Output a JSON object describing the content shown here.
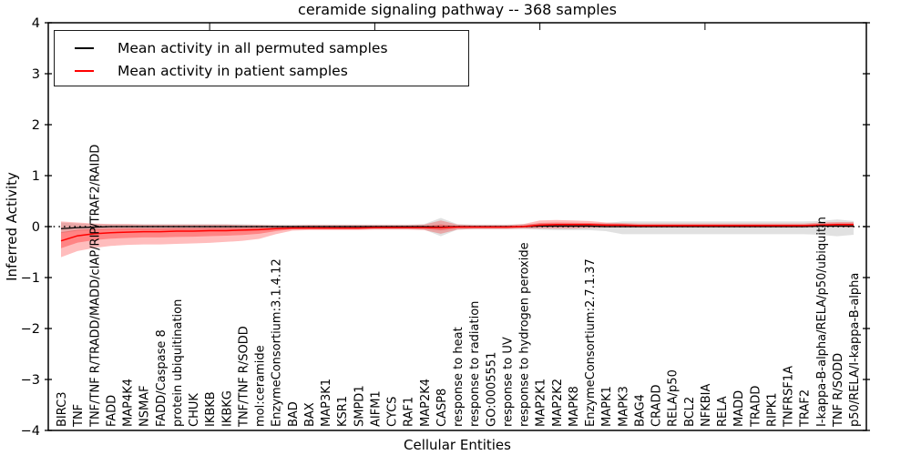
{
  "figure": {
    "background": "#ffffff",
    "frame_color": "#000000"
  },
  "chart_data": {
    "type": "line",
    "title": "ceramide signaling pathway -- 368 samples",
    "xlabel": "Cellular Entities",
    "ylabel": "Inferred Activity",
    "ylim": [
      -4,
      4
    ],
    "yticks": [
      4,
      3,
      2,
      1,
      0,
      -1,
      -2,
      -3,
      -4
    ],
    "ytick_labels": [
      "4",
      "3",
      "2",
      "1",
      "0",
      "−1",
      "−2",
      "−3",
      "−4"
    ],
    "grid": false,
    "legend_position": "upper left",
    "reference_line": {
      "y": 0,
      "style": "dotted",
      "color": "#000000"
    },
    "categories": [
      "BIRC3",
      "TNF",
      "TNF/TNF R/TRADD/MADD/cIAP/RIP/TRAF2/RAIDD",
      "FADD",
      "MAP4K4",
      "NSMAF",
      "FADD/Caspase 8",
      "protein ubiquitination",
      "CHUK",
      "IKBKB",
      "IKBKG",
      "TNF/TNF R/SODD",
      "mol:ceramide",
      "EnzymeConsortium:3.1.4.12",
      "BAD",
      "BAX",
      "MAP3K1",
      "KSR1",
      "SMPD1",
      "AIFM1",
      "CYCS",
      "RAF1",
      "MAP2K4",
      "CASP8",
      "response to heat",
      "response to radiation",
      "GO:0005551",
      "response to UV",
      "response to hydrogen peroxide",
      "MAP2K1",
      "MAP2K2",
      "MAPK8",
      "EnzymeConsortium:2.7.1.37",
      "MAPK1",
      "MAPK3",
      "BAG4",
      "CRADD",
      "RELA/p50",
      "BCL2",
      "NFKBIA",
      "RELA",
      "MADD",
      "TRADD",
      "RIPK1",
      "TNFRSF1A",
      "TRAF2",
      "I-kappa-B-alpha/RELA/p50/ubiquitin",
      "TNF R/SODD",
      "p50/RELA/I-kappa-B-alpha"
    ],
    "series": [
      {
        "name": "Mean activity in all permuted samples",
        "color": "#000000",
        "band_color": "#aaaaaa",
        "values": [
          -0.04,
          -0.02,
          -0.01,
          0,
          0,
          0,
          0,
          0,
          0,
          0,
          0,
          0,
          0,
          0,
          0,
          0,
          0,
          0,
          0,
          0,
          0,
          0,
          0,
          -0.01,
          0,
          0,
          0,
          0,
          0,
          0.01,
          0.01,
          0.01,
          0.01,
          0,
          0,
          0,
          0,
          0,
          0,
          0,
          0,
          0,
          0,
          0,
          0,
          0,
          0.01,
          0.01,
          0.01
        ],
        "band_upper": [
          0.08,
          0.06,
          0.05,
          0.05,
          0.05,
          0.05,
          0.05,
          0.05,
          0.05,
          0.05,
          0.05,
          0.05,
          0.04,
          0.04,
          0.04,
          0.04,
          0.04,
          0.04,
          0.04,
          0.04,
          0.04,
          0.04,
          0.05,
          0.17,
          0.05,
          0.04,
          0.04,
          0.04,
          0.05,
          0.06,
          0.06,
          0.06,
          0.06,
          0.07,
          0.1,
          0.1,
          0.1,
          0.1,
          0.1,
          0.1,
          0.1,
          0.1,
          0.1,
          0.1,
          0.1,
          0.1,
          0.11,
          0.14,
          0.11
        ],
        "band_lower": [
          -0.13,
          -0.08,
          -0.07,
          -0.06,
          -0.06,
          -0.06,
          -0.06,
          -0.06,
          -0.06,
          -0.06,
          -0.06,
          -0.06,
          -0.06,
          -0.05,
          -0.05,
          -0.05,
          -0.05,
          -0.05,
          -0.05,
          -0.05,
          -0.05,
          -0.05,
          -0.06,
          -0.19,
          -0.06,
          -0.05,
          -0.05,
          -0.05,
          -0.05,
          -0.06,
          -0.07,
          -0.07,
          -0.07,
          -0.09,
          -0.15,
          -0.15,
          -0.15,
          -0.15,
          -0.15,
          -0.15,
          -0.15,
          -0.15,
          -0.15,
          -0.15,
          -0.15,
          -0.15,
          -0.16,
          -0.19,
          -0.16
        ]
      },
      {
        "name": "Mean activity in patient samples",
        "color": "#ff0000",
        "band_color": "#ff0000",
        "values": [
          -0.28,
          -0.18,
          -0.14,
          -0.12,
          -0.11,
          -0.1,
          -0.1,
          -0.09,
          -0.09,
          -0.08,
          -0.08,
          -0.07,
          -0.06,
          -0.04,
          -0.03,
          -0.03,
          -0.03,
          -0.03,
          -0.03,
          -0.02,
          -0.02,
          -0.02,
          -0.02,
          -0.02,
          -0.01,
          -0.01,
          -0.01,
          -0.01,
          0.0,
          0.03,
          0.04,
          0.04,
          0.04,
          0.03,
          0.03,
          0.02,
          0.02,
          0.02,
          0.02,
          0.02,
          0.02,
          0.02,
          0.02,
          0.02,
          0.02,
          0.02,
          0.03,
          0.04,
          0.04
        ],
        "band_upper": [
          0.1,
          0.08,
          0.06,
          0.05,
          0.05,
          0.04,
          0.04,
          0.04,
          0.04,
          0.04,
          0.04,
          0.03,
          0.03,
          0.02,
          0.02,
          0.03,
          0.03,
          0.03,
          0.03,
          0.03,
          0.03,
          0.03,
          0.04,
          0.12,
          0.04,
          0.03,
          0.03,
          0.03,
          0.05,
          0.12,
          0.13,
          0.12,
          0.11,
          0.08,
          0.07,
          0.06,
          0.06,
          0.06,
          0.06,
          0.06,
          0.06,
          0.06,
          0.06,
          0.06,
          0.06,
          0.06,
          0.08,
          0.09,
          0.09
        ],
        "band_lower": [
          -0.6,
          -0.48,
          -0.42,
          -0.38,
          -0.36,
          -0.35,
          -0.35,
          -0.34,
          -0.33,
          -0.32,
          -0.3,
          -0.28,
          -0.24,
          -0.15,
          -0.08,
          -0.07,
          -0.07,
          -0.07,
          -0.07,
          -0.06,
          -0.06,
          -0.06,
          -0.07,
          -0.14,
          -0.06,
          -0.05,
          -0.05,
          -0.05,
          -0.04,
          -0.04,
          -0.04,
          -0.04,
          -0.03,
          -0.02,
          -0.02,
          -0.02,
          -0.02,
          -0.02,
          -0.02,
          -0.02,
          -0.02,
          -0.02,
          -0.02,
          -0.02,
          -0.02,
          -0.02,
          -0.01,
          -0.01,
          -0.02
        ]
      }
    ]
  }
}
